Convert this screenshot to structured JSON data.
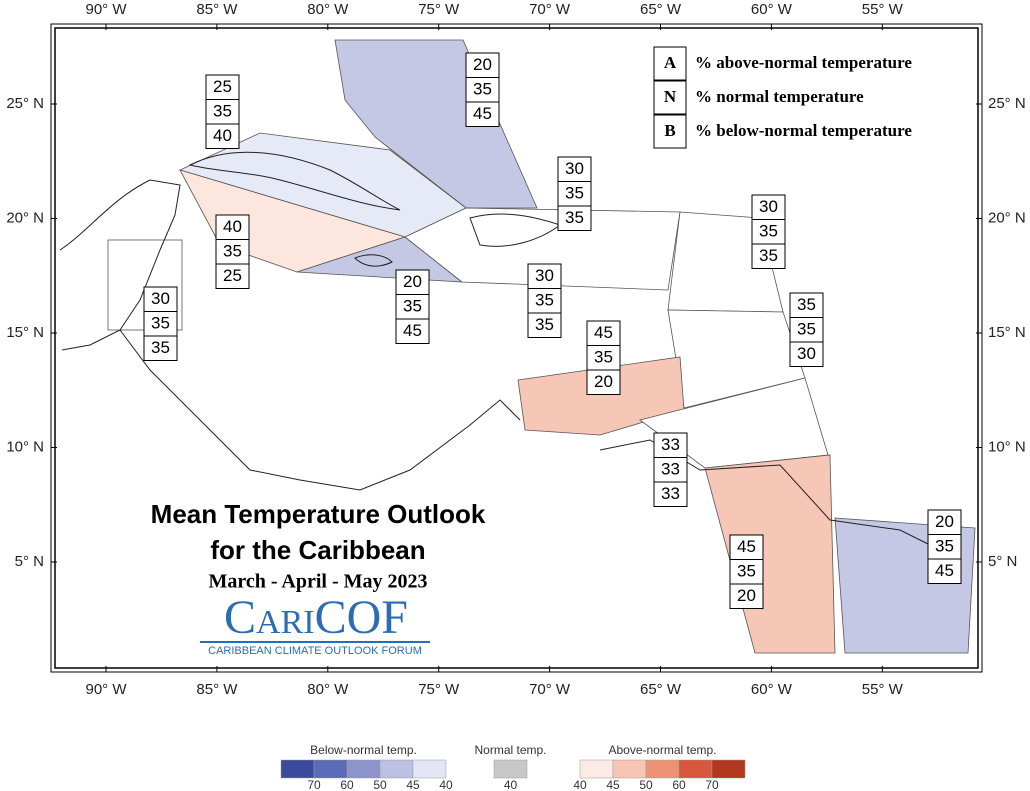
{
  "map_title": "Mean Temperature Outlook",
  "map_subtitle": "for the Caribbean",
  "period": "March - April - May 2023",
  "logo": {
    "name": "CariCOF",
    "tagline": "CARIBBEAN CLIMATE OUTLOOK FORUM"
  },
  "key": [
    {
      "letter": "A",
      "text": "% above-normal temperature"
    },
    {
      "letter": "N",
      "text": "% normal temperature"
    },
    {
      "letter": "B",
      "text": "% below-normal temperature"
    }
  ],
  "longitudes": [
    "90° W",
    "85° W",
    "80° W",
    "75° W",
    "70° W",
    "65° W",
    "60° W",
    "55° W"
  ],
  "latitudes": [
    "25° N",
    "20° N",
    "15° N",
    "10° N",
    "5° N"
  ],
  "regions": [
    [
      20,
      35,
      45
    ],
    [
      25,
      35,
      40
    ],
    [
      30,
      35,
      35
    ],
    [
      30,
      35,
      35
    ],
    [
      40,
      35,
      25
    ],
    [
      20,
      35,
      45
    ],
    [
      30,
      35,
      35
    ],
    [
      30,
      35,
      35
    ],
    [
      35,
      35,
      30
    ],
    [
      45,
      35,
      20
    ],
    [
      33,
      33,
      33
    ],
    [
      45,
      35,
      20
    ],
    [
      20,
      35,
      45
    ]
  ],
  "colorbar": {
    "below": {
      "label": "Below-normal temp.",
      "ticks": [
        70,
        60,
        50,
        45,
        40
      ]
    },
    "normal": {
      "label": "Normal temp.",
      "ticks": [
        40
      ]
    },
    "above": {
      "label": "Above-normal temp.",
      "ticks": [
        40,
        45,
        50,
        60,
        70
      ]
    }
  }
}
